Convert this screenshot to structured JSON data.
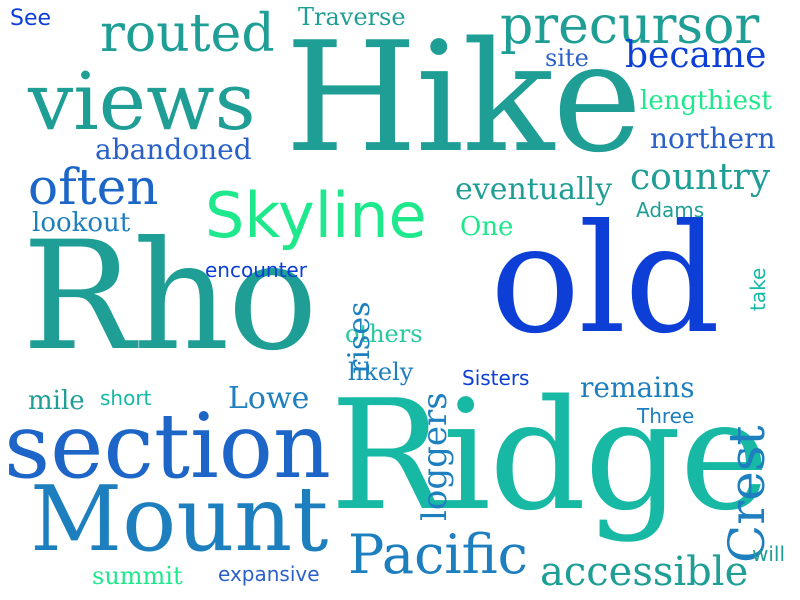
{
  "word_cloud": {
    "words": {
      "hike": "Hike",
      "ridge": "Ridge",
      "rho": "Rho",
      "old": "old",
      "section": "section",
      "mount": "Mount",
      "views": "views",
      "precursor": "precursor",
      "routed": "routed",
      "skyline": "Skyline",
      "often": "often",
      "pacific": "Pacific",
      "crest": "Crest",
      "loggers": "loggers",
      "accessible": "accessible",
      "country": "country",
      "became": "became",
      "eventually": "eventually",
      "northern": "northern",
      "abandoned": "abandoned",
      "lengthiest": "lengthiest",
      "remains": "remains",
      "lowe": "Lowe",
      "lookout": "lookout",
      "one": "One",
      "traverse": "Traverse",
      "mile": "mile",
      "others": "others",
      "likely": "likely",
      "summit": "summit",
      "rises": "rises",
      "site": "site",
      "see": "See",
      "encounter": "encounter",
      "expansive": "expansive",
      "short": "short",
      "sisters": "Sisters",
      "three": "Three",
      "adams": "Adams",
      "take": "take",
      "will": "will"
    },
    "palette": [
      "#1f9e95",
      "#0d3fd6",
      "#1e7fbf",
      "#2a60c8",
      "#17b9a5",
      "#1ee88c",
      "#27c9a0",
      "#1d66c8"
    ]
  }
}
